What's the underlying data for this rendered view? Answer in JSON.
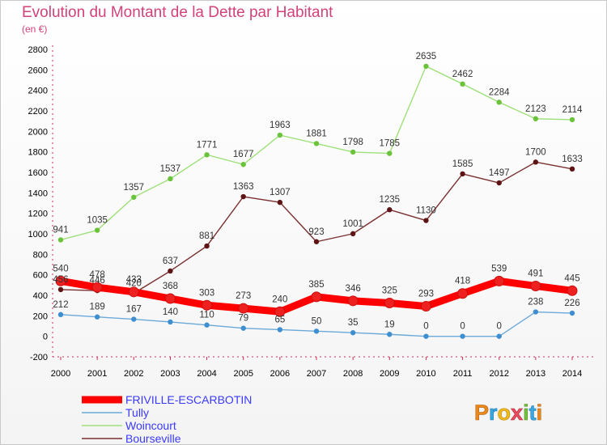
{
  "chart_data": {
    "type": "line",
    "title": "Evolution du Montant de la Dette par Habitant",
    "subtitle": "(en €)",
    "x": [
      "2000",
      "2001",
      "2002",
      "2003",
      "2004",
      "2005",
      "2006",
      "2007",
      "2008",
      "2009",
      "2010",
      "2011",
      "2012",
      "2013",
      "2014"
    ],
    "ylim": [
      -200,
      2800
    ],
    "yticks": [
      -200,
      0,
      200,
      400,
      600,
      800,
      1000,
      1200,
      1400,
      1600,
      1800,
      2000,
      2200,
      2400,
      2600,
      2800
    ],
    "grid": false,
    "legend_placement": "bottom-left",
    "series": [
      {
        "name": "FRIVILLE-ESCARBOTIN",
        "color": "#ff0000",
        "marker": "#ee2020",
        "values": [
          540,
          478,
          433,
          368,
          303,
          273,
          240,
          385,
          346,
          325,
          293,
          418,
          539,
          491,
          445
        ]
      },
      {
        "name": "Tully",
        "color": "#6aa9d8",
        "marker": "#3f8fd0",
        "values": [
          212,
          189,
          167,
          140,
          110,
          79,
          65,
          50,
          35,
          19,
          0,
          0,
          0,
          238,
          226
        ]
      },
      {
        "name": "Woincourt",
        "color": "#9fe07a",
        "marker": "#6ac33a",
        "values": [
          941,
          1035,
          1357,
          1537,
          1771,
          1677,
          1963,
          1881,
          1798,
          1785,
          2635,
          2462,
          2284,
          2123,
          2114
        ]
      },
      {
        "name": "Bourseville",
        "color": "#7a3030",
        "marker": "#5e1414",
        "values": [
          456,
          446,
          420,
          637,
          881,
          1363,
          1307,
          923,
          1001,
          1235,
          1130,
          1585,
          1497,
          1700,
          1633
        ]
      }
    ]
  },
  "logo": {
    "text": "Proxiti"
  }
}
